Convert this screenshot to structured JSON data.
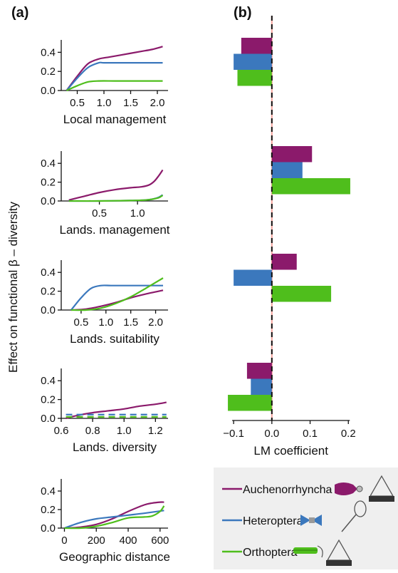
{
  "figure": {
    "panel_a_label": "(a)",
    "panel_b_label": "(b)",
    "shared_ylabel": "Effect on functional β – diversity"
  },
  "colors": {
    "Auchenorrhyncha": "#8b1a6b",
    "Heteroptera": "#3b78bd",
    "Orthoptera": "#4fbe1c",
    "zero_line_pink": "#f4a6a0",
    "legend_bg": "#efefef"
  },
  "legend": {
    "items": [
      "Auchenorrhyncha",
      "Heteroptera",
      "Orthoptera"
    ],
    "icons": {
      "Auchenorrhyncha": [
        "leafhopper-icon",
        "emergence-trap-icon"
      ],
      "Heteroptera": [
        "true-bug-icon",
        "sweep-net-icon"
      ],
      "Orthoptera": [
        "grasshopper-icon",
        "emergence-trap-icon"
      ]
    }
  },
  "chart_data": [
    {
      "type": "line",
      "xlabel": "Local management",
      "ylabel": "",
      "xlim": [
        0.2,
        2.2
      ],
      "ylim": [
        0,
        0.5
      ],
      "xticks": [
        "0.5",
        "1.0",
        "1.5",
        "2.0"
      ],
      "yticks": [
        "0.0",
        "0.2",
        "0.4"
      ],
      "series": [
        {
          "name": "Auchenorrhyncha",
          "x": [
            0.3,
            0.5,
            0.7,
            0.9,
            1.1,
            1.3,
            1.5,
            1.7,
            1.9,
            2.1
          ],
          "y": [
            0.0,
            0.15,
            0.28,
            0.33,
            0.35,
            0.37,
            0.39,
            0.41,
            0.43,
            0.46
          ]
        },
        {
          "name": "Heteroptera",
          "x": [
            0.3,
            0.5,
            0.7,
            0.9,
            1.0,
            1.3,
            1.6,
            2.1
          ],
          "y": [
            0.0,
            0.13,
            0.24,
            0.29,
            0.29,
            0.29,
            0.29,
            0.29
          ]
        },
        {
          "name": "Orthoptera",
          "x": [
            0.3,
            0.5,
            0.7,
            0.9,
            1.2,
            1.6,
            2.1
          ],
          "y": [
            0.0,
            0.05,
            0.09,
            0.1,
            0.1,
            0.1,
            0.1
          ]
        }
      ]
    },
    {
      "type": "line",
      "xlabel": "Lands. management",
      "ylabel": "",
      "xlim": [
        0.0,
        1.4
      ],
      "ylim": [
        0,
        0.5
      ],
      "xticks": [
        "0.5",
        "1.0"
      ],
      "yticks": [
        "0.0",
        "0.2",
        "0.4"
      ],
      "series": [
        {
          "name": "Auchenorrhyncha",
          "x": [
            0.1,
            0.3,
            0.5,
            0.7,
            0.9,
            1.05,
            1.15,
            1.22,
            1.28,
            1.33
          ],
          "y": [
            0.01,
            0.05,
            0.09,
            0.12,
            0.14,
            0.15,
            0.17,
            0.21,
            0.27,
            0.33
          ]
        },
        {
          "name": "Heteroptera",
          "x": [
            0.1,
            0.5,
            0.9,
            1.1,
            1.2,
            1.28,
            1.33
          ],
          "y": [
            0.0,
            0.0,
            0.005,
            0.01,
            0.02,
            0.04,
            0.065
          ]
        },
        {
          "name": "Orthoptera",
          "x": [
            0.1,
            0.5,
            0.9,
            1.1,
            1.2,
            1.28,
            1.33
          ],
          "y": [
            0.0,
            0.0,
            0.005,
            0.01,
            0.02,
            0.035,
            0.06
          ]
        }
      ]
    },
    {
      "type": "line",
      "xlabel": "Lands. suitability",
      "ylabel": "",
      "xlim": [
        0.1,
        2.25
      ],
      "ylim": [
        0,
        0.5
      ],
      "xticks": [
        "0.5",
        "1.0",
        "1.5",
        "2.0"
      ],
      "yticks": [
        "0.0",
        "0.2",
        "0.4"
      ],
      "series": [
        {
          "name": "Auchenorrhyncha",
          "x": [
            0.3,
            0.6,
            0.9,
            1.2,
            1.5,
            1.8,
            2.15
          ],
          "y": [
            0.0,
            0.01,
            0.04,
            0.08,
            0.13,
            0.17,
            0.21
          ]
        },
        {
          "name": "Heteroptera",
          "x": [
            0.3,
            0.5,
            0.7,
            0.9,
            1.1,
            1.4,
            1.8,
            2.15
          ],
          "y": [
            0.0,
            0.13,
            0.23,
            0.26,
            0.26,
            0.26,
            0.26,
            0.26
          ]
        },
        {
          "name": "Orthoptera",
          "x": [
            0.3,
            0.6,
            0.9,
            1.2,
            1.5,
            1.8,
            2.15
          ],
          "y": [
            0.0,
            0.0,
            0.02,
            0.07,
            0.14,
            0.23,
            0.34
          ]
        }
      ]
    },
    {
      "type": "line",
      "xlabel": "Lands. diversity",
      "ylabel": "",
      "xlim": [
        0.6,
        1.28
      ],
      "ylim": [
        0,
        0.5
      ],
      "xticks": [
        "0.6",
        "0.8",
        "1.0",
        "1.2"
      ],
      "yticks": [
        "0.0",
        "0.2",
        "0.4"
      ],
      "series": [
        {
          "name": "Auchenorrhyncha",
          "x": [
            0.63,
            0.7,
            0.8,
            0.9,
            1.0,
            1.1,
            1.2,
            1.27
          ],
          "y": [
            0.0,
            0.03,
            0.06,
            0.08,
            0.1,
            0.13,
            0.15,
            0.17
          ],
          "style": "solid"
        },
        {
          "name": "Heteroptera",
          "x": [
            0.63,
            1.27
          ],
          "y": [
            0.04,
            0.04
          ],
          "style": "dashed"
        },
        {
          "name": "Orthoptera",
          "x": [
            0.63,
            1.27
          ],
          "y": [
            0.015,
            0.015
          ],
          "style": "dashed"
        }
      ]
    },
    {
      "type": "line",
      "xlabel": "Geographic distance",
      "ylabel": "",
      "xlim": [
        -20,
        650
      ],
      "ylim": [
        0,
        0.5
      ],
      "xticks": [
        "0",
        "200",
        "400",
        "600"
      ],
      "yticks": [
        "0.0",
        "0.2",
        "0.4"
      ],
      "series": [
        {
          "name": "Auchenorrhyncha",
          "x": [
            0,
            100,
            200,
            300,
            400,
            500,
            550,
            600,
            625
          ],
          "y": [
            0.0,
            0.01,
            0.04,
            0.1,
            0.18,
            0.25,
            0.27,
            0.28,
            0.28
          ]
        },
        {
          "name": "Heteroptera",
          "x": [
            0,
            100,
            200,
            300,
            400,
            500,
            625
          ],
          "y": [
            0.0,
            0.06,
            0.1,
            0.12,
            0.14,
            0.16,
            0.19
          ]
        },
        {
          "name": "Orthoptera",
          "x": [
            0,
            100,
            200,
            300,
            400,
            500,
            550,
            600,
            625
          ],
          "y": [
            0.0,
            0.0,
            0.02,
            0.06,
            0.11,
            0.12,
            0.13,
            0.18,
            0.24
          ]
        }
      ]
    },
    {
      "type": "bar",
      "orientation": "horizontal",
      "xlabel": "LM coefficient",
      "ylabel": "",
      "xlim": [
        -0.13,
        0.22
      ],
      "xticks": [
        "−0.1",
        "0.0",
        "0.1",
        "0.2"
      ],
      "xtick_values": [
        -0.1,
        0.0,
        0.1,
        0.2
      ],
      "categories": [
        "Local management",
        "Lands. management",
        "Lands. suitability",
        "Lands. diversity"
      ],
      "series": [
        {
          "name": "Auchenorrhyncha",
          "values": [
            -0.08,
            0.105,
            0.065,
            -0.065
          ]
        },
        {
          "name": "Heteroptera",
          "values": [
            -0.1,
            0.08,
            -0.1,
            -0.055
          ]
        },
        {
          "name": "Orthoptera",
          "values": [
            -0.09,
            0.205,
            0.155,
            -0.115
          ]
        }
      ],
      "zero_line": "dashed"
    }
  ]
}
